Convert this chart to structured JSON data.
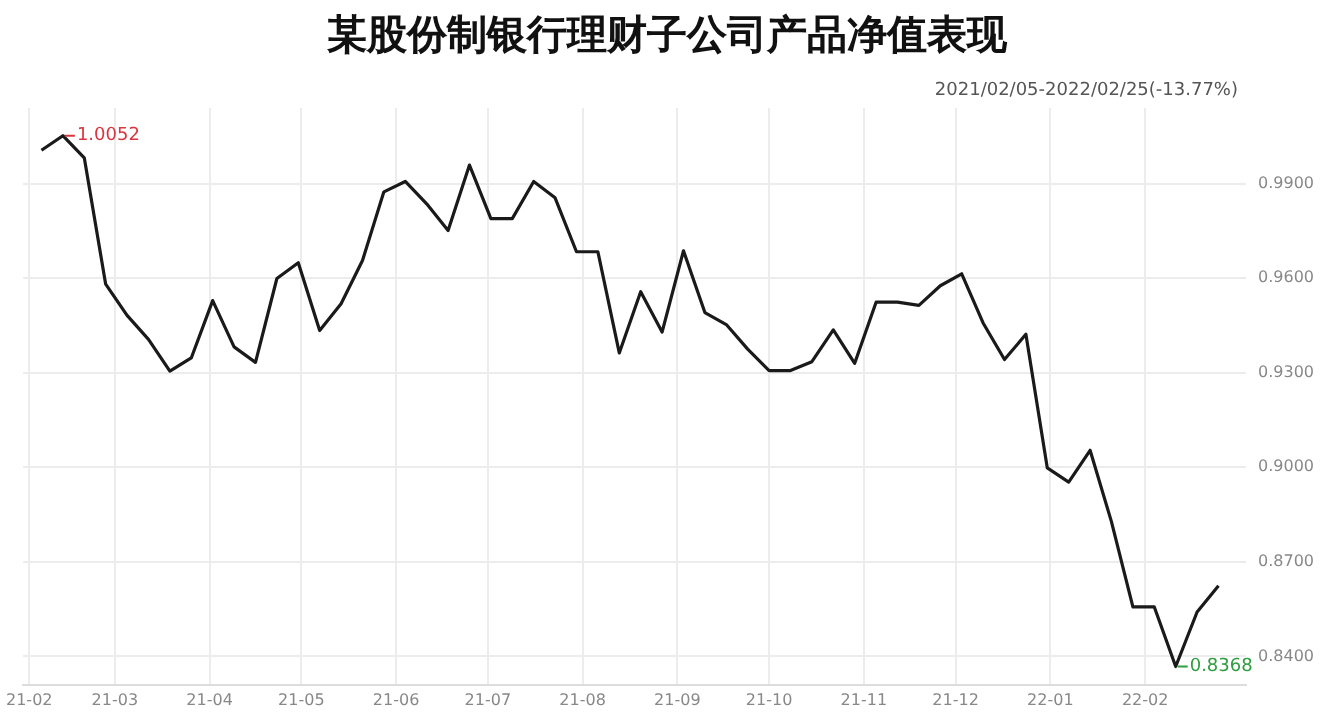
{
  "chart_data": {
    "type": "line",
    "title": "某股份制银行理财子公司产品净值表现",
    "x": [
      "2021-02-05",
      "2021-02-12",
      "2021-02-19",
      "2021-02-26",
      "2021-03-05",
      "2021-03-12",
      "2021-03-19",
      "2021-03-26",
      "2021-04-02",
      "2021-04-09",
      "2021-04-16",
      "2021-04-23",
      "2021-04-30",
      "2021-05-07",
      "2021-05-14",
      "2021-05-21",
      "2021-05-28",
      "2021-06-04",
      "2021-06-11",
      "2021-06-18",
      "2021-06-25",
      "2021-07-02",
      "2021-07-09",
      "2021-07-16",
      "2021-07-23",
      "2021-07-30",
      "2021-08-06",
      "2021-08-13",
      "2021-08-20",
      "2021-08-27",
      "2021-09-03",
      "2021-09-10",
      "2021-09-17",
      "2021-09-24",
      "2021-10-01",
      "2021-10-08",
      "2021-10-15",
      "2021-10-22",
      "2021-10-29",
      "2021-11-05",
      "2021-11-12",
      "2021-11-19",
      "2021-11-26",
      "2021-12-03",
      "2021-12-10",
      "2021-12-17",
      "2021-12-24",
      "2021-12-31",
      "2022-01-07",
      "2022-01-14",
      "2022-01-21",
      "2022-01-28",
      "2022-02-04",
      "2022-02-11",
      "2022-02-18",
      "2022-02-25"
    ],
    "series": [
      {
        "color": "#1a1a1a",
        "values": [
          1.0006,
          1.0052,
          0.9982,
          0.9581,
          0.9482,
          0.9406,
          0.9305,
          0.9347,
          0.9529,
          0.9382,
          0.9333,
          0.9599,
          0.9649,
          0.9434,
          0.9519,
          0.9656,
          0.9874,
          0.9907,
          0.9836,
          0.9751,
          0.9959,
          0.9789,
          0.9789,
          0.9907,
          0.9855,
          0.9684,
          0.9684,
          0.9363,
          0.9557,
          0.9429,
          0.9687,
          0.9491,
          0.9453,
          0.9375,
          0.9307,
          0.9307,
          0.9335,
          0.9436,
          0.933,
          0.9524,
          0.9524,
          0.9514,
          0.9576,
          0.9614,
          0.9458,
          0.9342,
          0.9422,
          0.8998,
          0.8953,
          0.9054,
          0.8827,
          0.8557,
          0.8557,
          0.8368,
          0.8541,
          0.8624
        ]
      }
    ],
    "xlim": [
      "2021-01-30",
      "2022-03-06"
    ],
    "xticks": [
      {
        "value": "2021-02-01",
        "label": "21-02"
      },
      {
        "value": "2021-03-01",
        "label": "21-03"
      },
      {
        "value": "2021-04-01",
        "label": "21-04"
      },
      {
        "value": "2021-05-01",
        "label": "21-05"
      },
      {
        "value": "2021-06-01",
        "label": "21-06"
      },
      {
        "value": "2021-07-01",
        "label": "21-07"
      },
      {
        "value": "2021-08-01",
        "label": "21-08"
      },
      {
        "value": "2021-09-01",
        "label": "21-09"
      },
      {
        "value": "2021-10-01",
        "label": "21-10"
      },
      {
        "value": "2021-11-01",
        "label": "21-11"
      },
      {
        "value": "2021-12-01",
        "label": "21-12"
      },
      {
        "value": "2022-01-01",
        "label": "22-01"
      },
      {
        "value": "2022-02-01",
        "label": "22-02"
      }
    ],
    "ylim": [
      0.831,
      1.014
    ],
    "yticks": [
      {
        "value": 0.84,
        "label": "0.8400"
      },
      {
        "value": 0.87,
        "label": "0.8700"
      },
      {
        "value": 0.9,
        "label": "0.9000"
      },
      {
        "value": 0.93,
        "label": "0.9300"
      },
      {
        "value": 0.96,
        "label": "0.9600"
      },
      {
        "value": 0.99,
        "label": "0.9900"
      }
    ],
    "annotations": [
      {
        "text": "1.0052",
        "x": "2021-02-12",
        "y": 1.0052
      },
      {
        "text": "0.8368",
        "x": "2022-02-11",
        "y": 0.8368
      },
      "2021/02/05-2022/02/25(-13.77%)"
    ],
    "grid": true,
    "legend": false,
    "marker": "none",
    "line_style": "solid"
  }
}
